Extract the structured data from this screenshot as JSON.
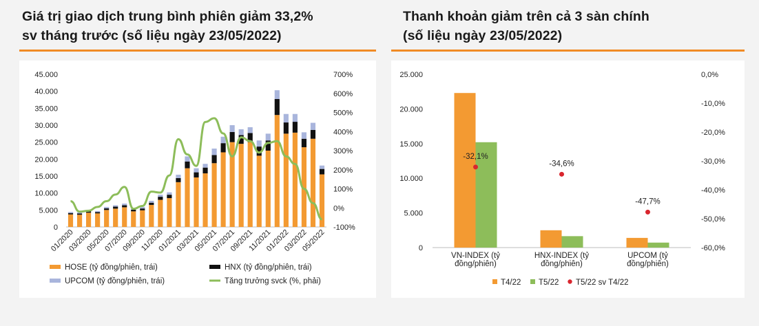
{
  "titles": {
    "left_line1": "Giá trị giao dịch trung bình phiên giảm 33,2%",
    "left_line2": "sv tháng trước (số liệu ngày  23/05/2022)",
    "right_line1": "Thanh khoản giảm trên cả 3 sàn chính",
    "right_line2": "(số liệu ngày 23/05/2022)"
  },
  "colors": {
    "orange": "#f39a32",
    "black": "#111111",
    "lavender": "#a9b5dc",
    "green": "#8dbd5a",
    "red": "#d9262e",
    "accent": "#f08a24"
  },
  "chart_data": [
    {
      "type": "bar",
      "stacked": true,
      "x_tick_labels": [
        "01/2020",
        "03/2020",
        "05/2020",
        "07/2020",
        "09/2020",
        "11/2020",
        "01/2021",
        "03/2021",
        "05/2021",
        "07/2021",
        "09/2021",
        "11/2021",
        "01/2022",
        "03/2022",
        "05/2022"
      ],
      "y_left": {
        "min": 0,
        "max": 45000,
        "ticks": [
          "0",
          "5.000",
          "10.000",
          "15.000",
          "20.000",
          "25.000",
          "30.000",
          "35.000",
          "40.000",
          "45.000"
        ]
      },
      "y_right": {
        "min": -100,
        "max": 700,
        "ticks": [
          "-100%",
          "0%",
          "100%",
          "200%",
          "300%",
          "400%",
          "500%",
          "600%",
          "700%"
        ]
      },
      "series": [
        {
          "name": "HOSE (tỷ đồng/phiên, trái)",
          "values": [
            3700,
            3600,
            4200,
            4000,
            5000,
            5400,
            5800,
            4600,
            4900,
            6500,
            8000,
            8500,
            13200,
            17300,
            14600,
            15800,
            18800,
            22000,
            25000,
            24500,
            25000,
            21000,
            22500,
            33000,
            27500,
            27800,
            23500,
            26000,
            15500
          ]
        },
        {
          "name": "HNX (tỷ đồng/phiên, trái)",
          "values": [
            400,
            400,
            450,
            400,
            500,
            600,
            600,
            500,
            550,
            650,
            900,
            1000,
            1200,
            2000,
            1500,
            1700,
            2400,
            2700,
            3000,
            2600,
            2700,
            2700,
            3000,
            4700,
            3300,
            3200,
            2500,
            2600,
            1600
          ]
        },
        {
          "name": "UPCOM (tỷ đồng/phiên, trái)",
          "values": [
            300,
            300,
            350,
            300,
            400,
            400,
            500,
            400,
            450,
            550,
            600,
            700,
            1000,
            1500,
            1200,
            1100,
            1900,
            1900,
            2000,
            1700,
            1700,
            1800,
            2000,
            2600,
            2500,
            2300,
            1900,
            2100,
            1000
          ]
        },
        {
          "name": "Tăng trưởng svck (%, phải)",
          "axis": "right",
          "values": [
            35,
            -20,
            -15,
            5,
            35,
            70,
            110,
            -5,
            10,
            85,
            80,
            170,
            360,
            280,
            220,
            450,
            470,
            390,
            270,
            370,
            350,
            290,
            340,
            350,
            270,
            230,
            100,
            25,
            -60
          ]
        }
      ]
    },
    {
      "type": "bar",
      "categories": [
        "VN-INDEX (tỷ đồng/phiên)",
        "HNX-INDEX (tỷ đồng/phiên)",
        "UPCOM (tỷ đồng/phiên)"
      ],
      "category_lines": [
        [
          "VN-INDEX (tỷ",
          "đồng/phiên)"
        ],
        [
          "HNX-INDEX (tỷ",
          "đồng/phiên)"
        ],
        [
          "UPCOM (tỷ",
          "đồng/phiên)"
        ]
      ],
      "y_left": {
        "min": 0,
        "max": 25000,
        "ticks": [
          "0",
          "5.000",
          "10.000",
          "15.000",
          "20.000",
          "25.000"
        ]
      },
      "y_right": {
        "min": -60,
        "max": 0,
        "ticks": [
          "-60,0%",
          "-50,0%",
          "-40,0%",
          "-30,0%",
          "-20,0%",
          "-10,0%",
          "0,0%"
        ]
      },
      "series": [
        {
          "name": "T4/22",
          "values": [
            22300,
            2500,
            1400
          ]
        },
        {
          "name": "T5/22",
          "values": [
            15200,
            1650,
            720
          ]
        },
        {
          "name": "T5/22 sv T4/22",
          "axis": "right",
          "values": [
            -32.1,
            -34.6,
            -47.7
          ],
          "labels": [
            "-32,1%",
            "-34,6%",
            "-47,7%"
          ]
        }
      ]
    }
  ]
}
